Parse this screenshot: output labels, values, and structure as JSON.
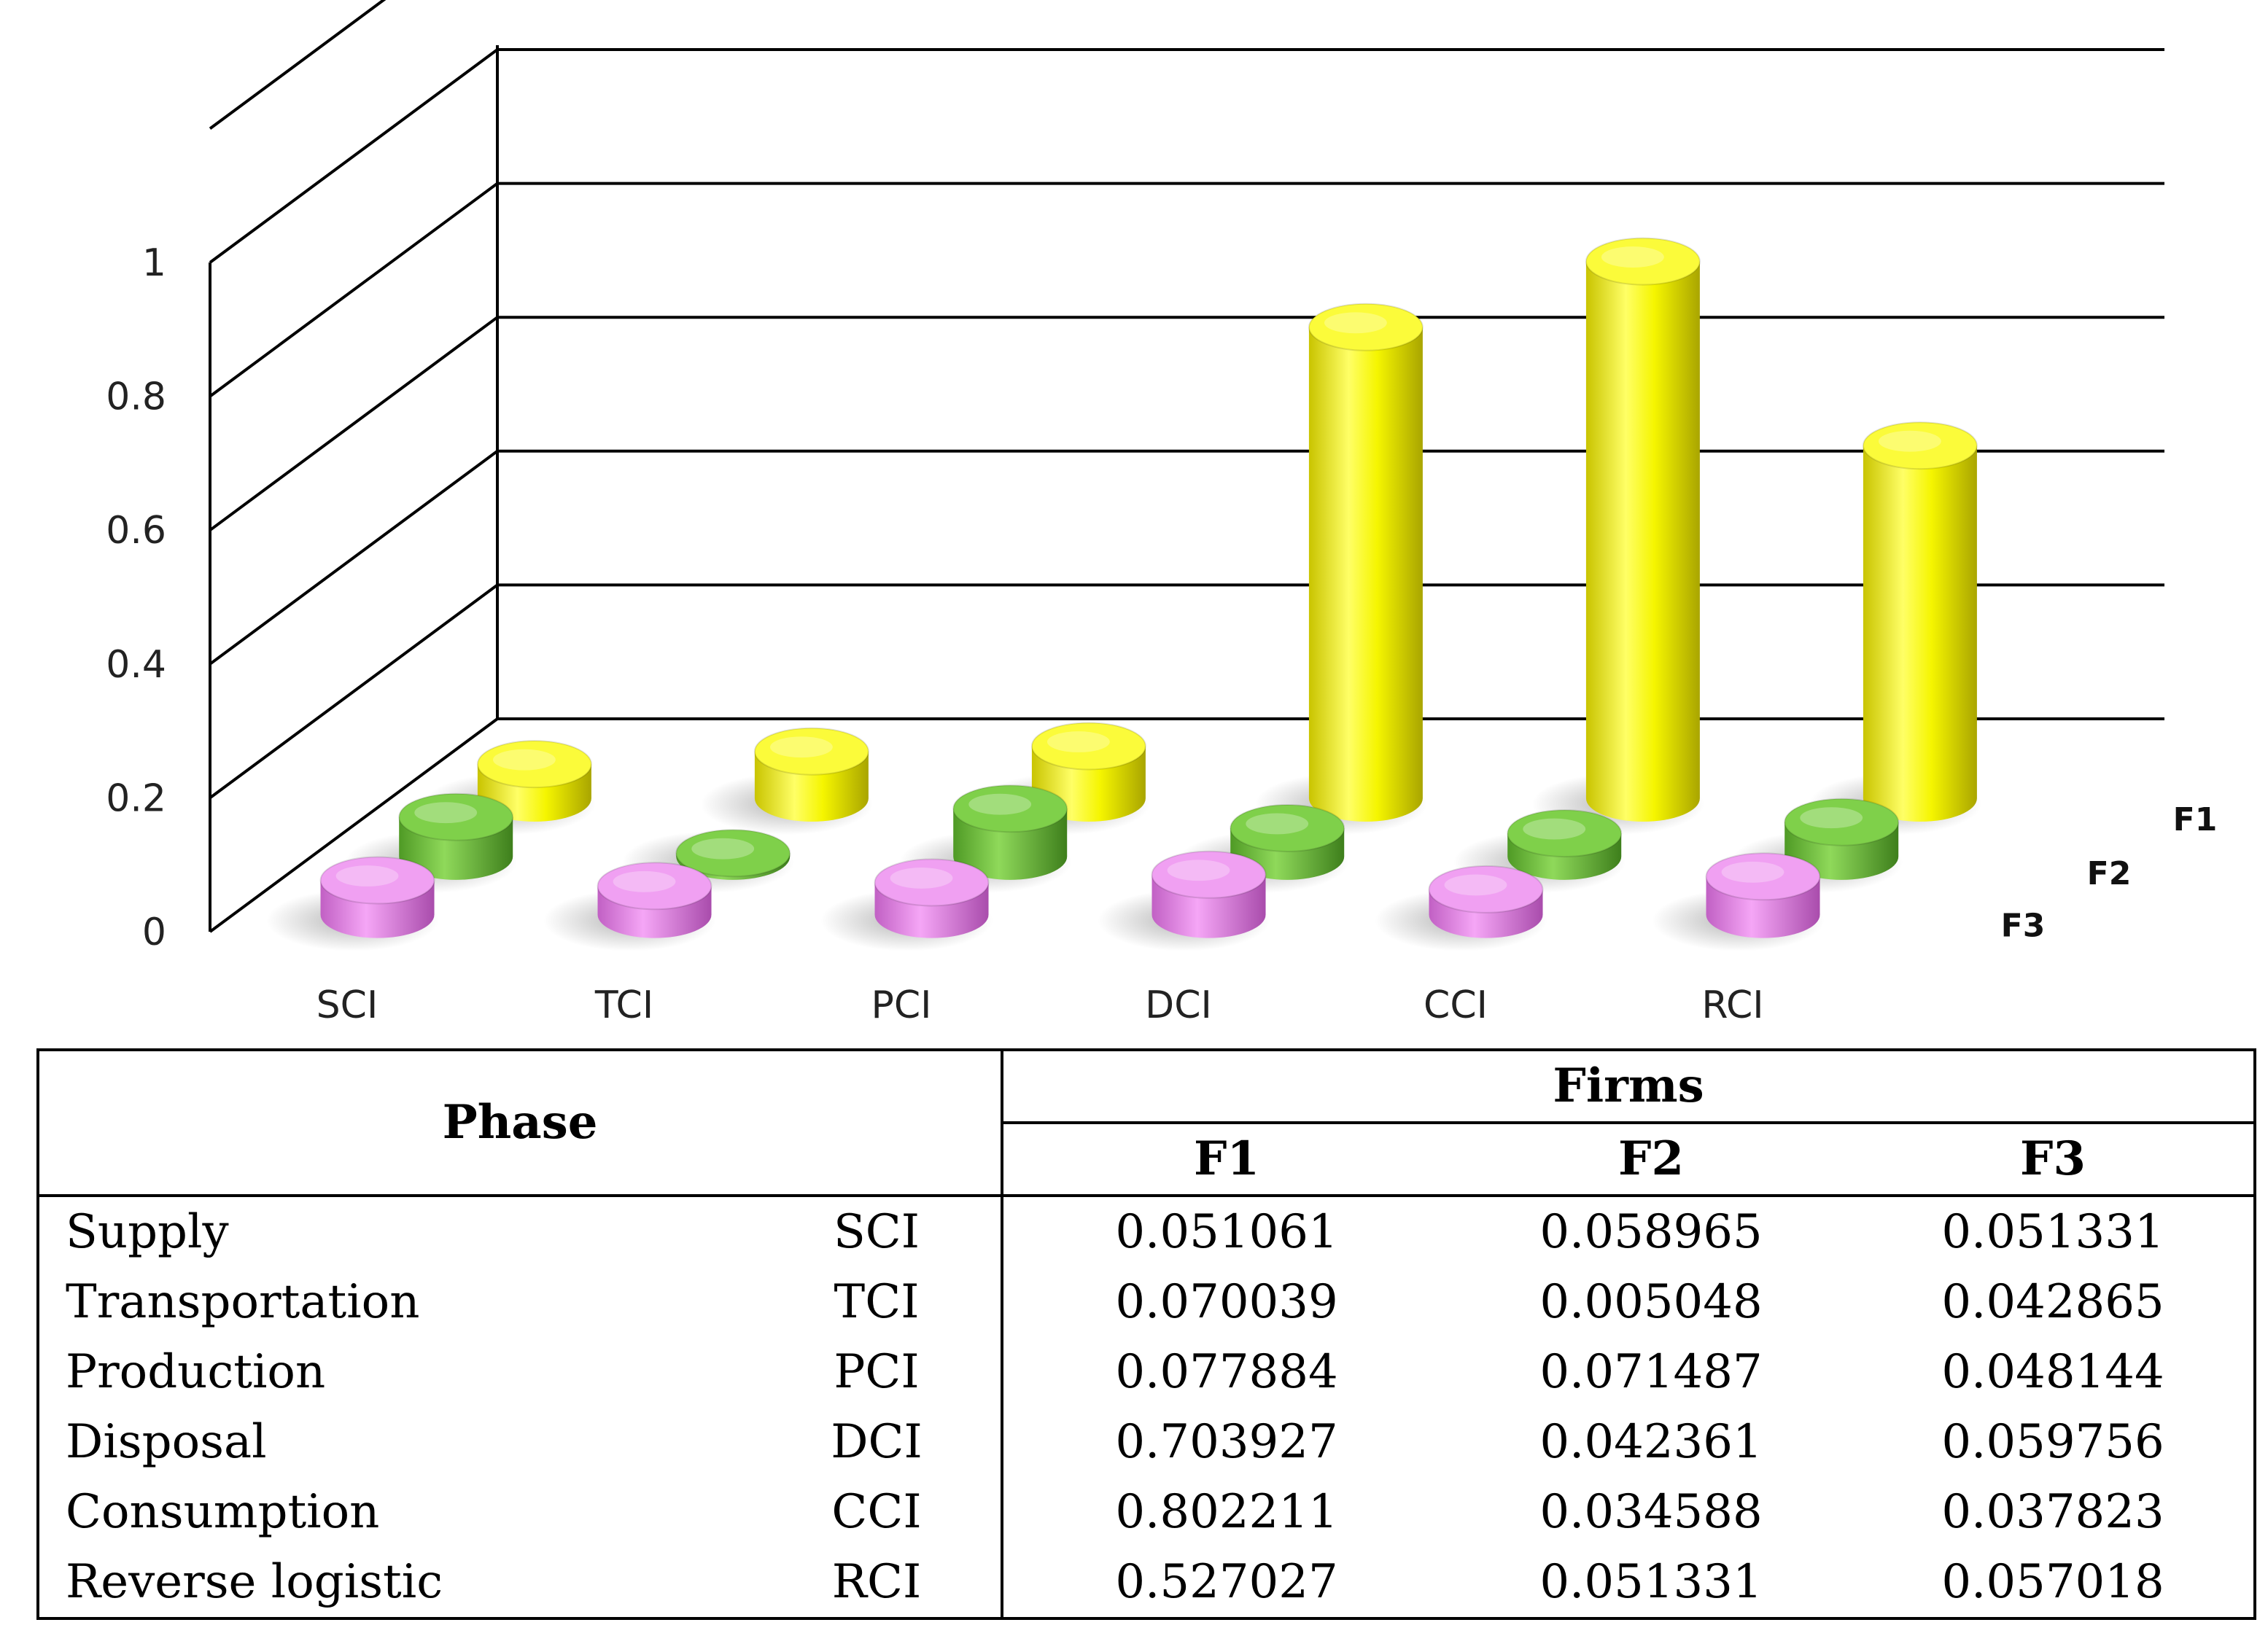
{
  "chart_data": {
    "type": "bar",
    "subtype": "3d-column",
    "categories": [
      "SCI",
      "TCI",
      "PCI",
      "DCI",
      "CCI",
      "RCI"
    ],
    "series": [
      {
        "name": "F1",
        "values": [
          0.051061,
          0.070039,
          0.077884,
          0.703927,
          0.802211,
          0.527027
        ],
        "color": "#f2f200"
      },
      {
        "name": "F2",
        "values": [
          0.058965,
          0.005048,
          0.071487,
          0.042361,
          0.034588,
          0.051331
        ],
        "color": "#6cbf35"
      },
      {
        "name": "F3",
        "values": [
          0.051331,
          0.042865,
          0.048144,
          0.059756,
          0.037823,
          0.057018
        ],
        "color": "#e27fe3"
      }
    ],
    "yticks": [
      "0",
      "0.2",
      "0.4",
      "0.6",
      "0.8",
      "1"
    ],
    "ylim": [
      0,
      1.2
    ],
    "grid": true,
    "title": "",
    "xlabel": "",
    "ylabel": ""
  },
  "table": {
    "header_phase": "Phase",
    "header_firms": "Firms",
    "firm_headers": [
      "F1",
      "F2",
      "F3"
    ],
    "rows": [
      {
        "phase": "Supply",
        "code": "SCI",
        "f1": "0.051061",
        "f2": "0.058965",
        "f3": "0.051331"
      },
      {
        "phase": "Transportation",
        "code": "TCI",
        "f1": "0.070039",
        "f2": "0.005048",
        "f3": "0.042865"
      },
      {
        "phase": "Production",
        "code": "PCI",
        "f1": "0.077884",
        "f2": "0.071487",
        "f3": "0.048144"
      },
      {
        "phase": "Disposal",
        "code": "DCI",
        "f1": "0.703927",
        "f2": "0.042361",
        "f3": "0.059756"
      },
      {
        "phase": "Consumption",
        "code": "CCI",
        "f1": "0.802211",
        "f2": "0.034588",
        "f3": "0.037823"
      },
      {
        "phase": "Reverse logistic",
        "code": "RCI",
        "f1": "0.527027",
        "f2": "0.051331",
        "f3": "0.057018"
      }
    ]
  }
}
